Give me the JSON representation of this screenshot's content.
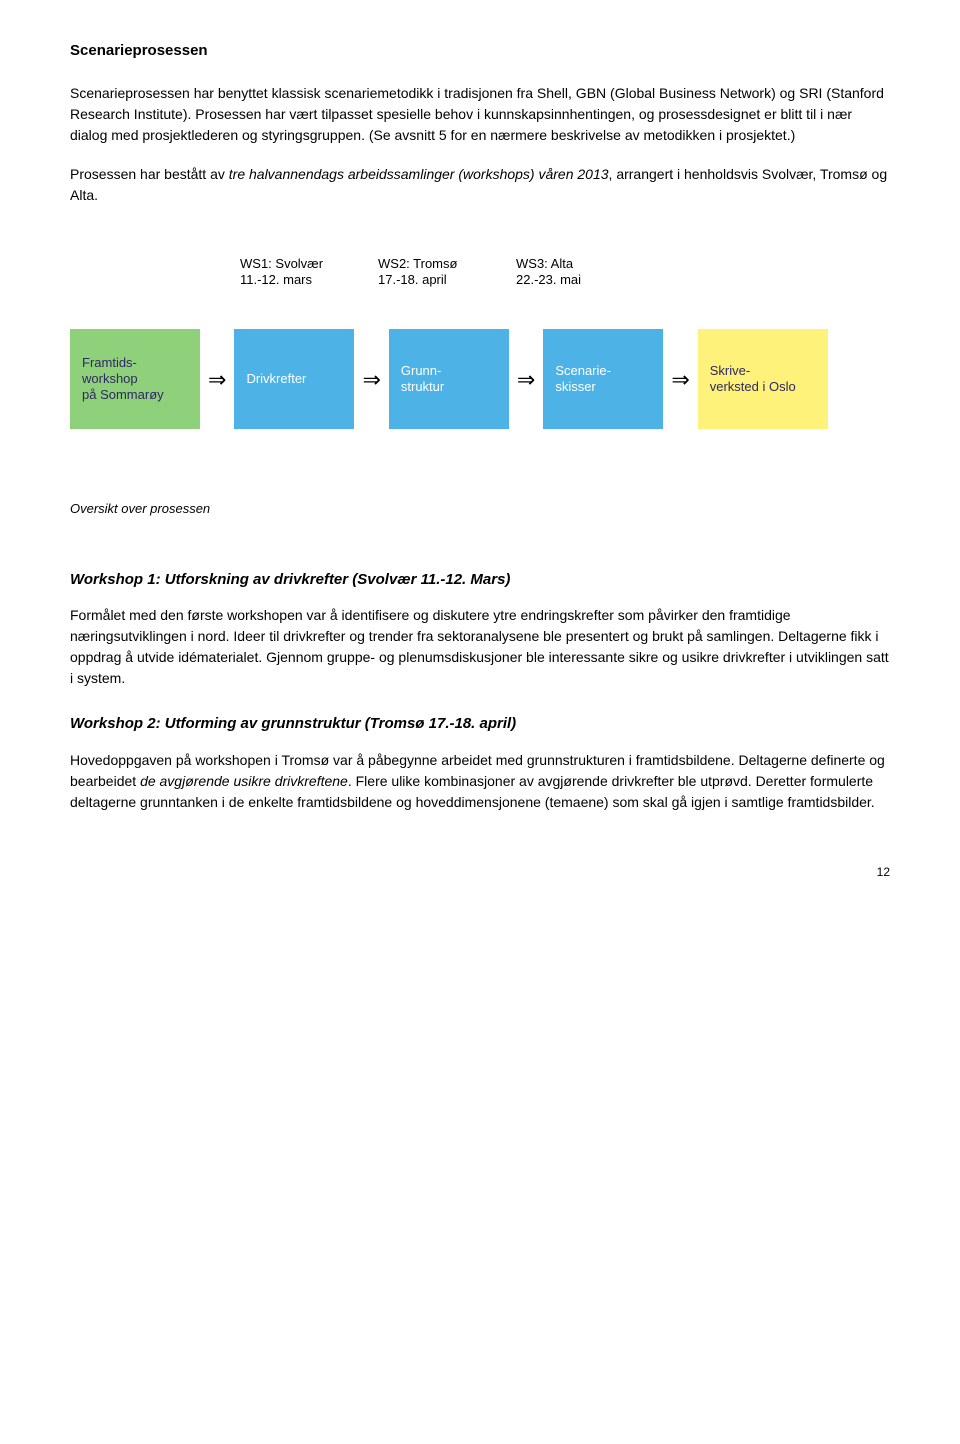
{
  "title": "Scenarieprosessen",
  "para1": "Scenarieprosessen har benyttet klassisk scenariemetodikk i tradisjonen fra Shell, GBN (Global Business Network) og SRI (Stanford Research Institute). Prosessen har vært tilpasset spesielle behov i kunnskapsinnhentingen, og prosessdesignet er blitt til i nær dialog med prosjektlederen og styringsgruppen. (Se avsnitt 5 for en nærmere beskrivelse av metodikken i prosjektet.)",
  "para2_pre": "Prosessen har bestått av ",
  "para2_italic": "tre halvannendags arbeidssamlinger (workshops) våren 2013",
  "para2_post": ", arrangert i henholdsvis Svolvær, Tromsø og Alta.",
  "diagram": {
    "ws_labels": [
      {
        "line1": "WS1: Svolvær",
        "line2": "11.-12. mars"
      },
      {
        "line1": "WS2: Tromsø",
        "line2": "17.-18. april"
      },
      {
        "line1": "WS3: Alta",
        "line2": "22.-23. mai"
      }
    ],
    "boxes": [
      {
        "text": "Framtids-workshop på Sommarøy",
        "color": "green"
      },
      {
        "text": "Drivkrefter",
        "color": "blue"
      },
      {
        "text": "Grunn-struktur",
        "color": "blue"
      },
      {
        "text": "Scenarie-skisser",
        "color": "blue"
      },
      {
        "text": "Skrive-verksted i Oslo",
        "color": "yellow"
      }
    ],
    "arrow_glyph": "⇒",
    "colors": {
      "green": "#8fd17a",
      "blue": "#4db3e6",
      "yellow": "#fff27a",
      "blue_text": "#ffffff",
      "green_text": "#2c2863",
      "yellow_text": "#2c2863"
    }
  },
  "caption": "Oversikt over prosessen",
  "workshop1": {
    "heading": "Workshop 1: Utforskning av drivkrefter (Svolvær 11.-12. Mars)",
    "body": "Formålet med den første workshopen var å identifisere og diskutere ytre endringskrefter som påvirker den framtidige næringsutviklingen i nord. Ideer til drivkrefter og trender fra sektoranalysene ble presentert og brukt på samlingen. Deltagerne fikk i oppdrag å utvide idématerialet. Gjennom gruppe- og plenumsdiskusjoner ble interessante sikre og usikre drivkrefter i utviklingen satt i system."
  },
  "workshop2": {
    "heading": "Workshop 2: Utforming av grunnstruktur (Tromsø 17.-18. april)",
    "body_pre": "Hovedoppgaven på workshopen i Tromsø var å påbegynne arbeidet med grunnstrukturen i framtidsbildene. Deltagerne definerte og bearbeidet ",
    "body_italic": "de avgjørende usikre drivkreftene",
    "body_post": ". Flere ulike kombinasjoner av avgjørende drivkrefter ble utprøvd. Deretter formulerte deltagerne grunntanken i de enkelte framtidsbildene og hoveddimensjonene (temaene) som skal gå igjen i samtlige framtidsbilder."
  },
  "page_number": "12"
}
